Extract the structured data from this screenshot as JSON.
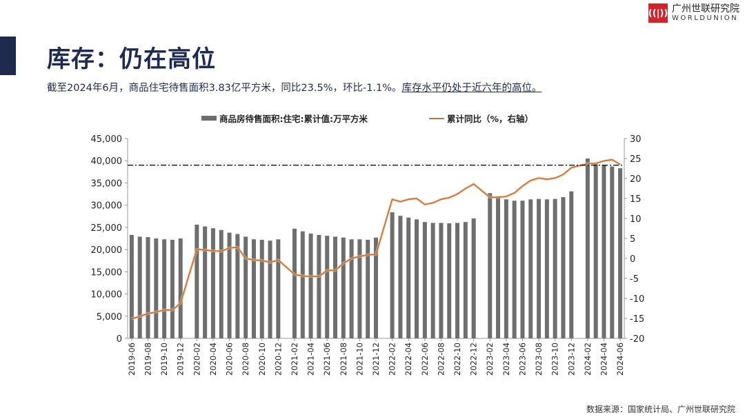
{
  "header": {
    "title": "库存：仍在高位",
    "subtitle_main": "截至2024年6月，商品住宅待售面积3.83亿平方米，同比23.5%，环比-1.1%。",
    "subtitle_highlight": "库存水平仍处于近六年的高位。"
  },
  "logo": {
    "mark": "((|))",
    "cn": "广州世联研究院",
    "en": "WORLDUNION"
  },
  "source": "数据来源：国家统计局、广州世联研究院",
  "colors": {
    "bar": "#6e6e6e",
    "line": "#c0733a",
    "accent": "#1f2a4f",
    "brand": "#d0252b"
  },
  "chart_data": {
    "type": "bar+line",
    "legend": [
      {
        "name": "商品房待售面积:住宅:累计值:万平方米",
        "type": "bar"
      },
      {
        "name": "累计同比（%，右轴）",
        "type": "line"
      }
    ],
    "legend_position": "top",
    "categories": [
      "2019-06",
      "2019-07",
      "2019-08",
      "2019-09",
      "2019-10",
      "2019-11",
      "2019-12",
      "2020-02",
      "2020-03",
      "2020-04",
      "2020-05",
      "2020-06",
      "2020-07",
      "2020-08",
      "2020-09",
      "2020-10",
      "2020-11",
      "2020-12",
      "2021-02",
      "2021-03",
      "2021-04",
      "2021-05",
      "2021-06",
      "2021-07",
      "2021-08",
      "2021-09",
      "2021-10",
      "2021-11",
      "2021-12",
      "2022-02",
      "2022-03",
      "2022-04",
      "2022-05",
      "2022-06",
      "2022-07",
      "2022-08",
      "2022-09",
      "2022-10",
      "2022-11",
      "2022-12",
      "2023-02",
      "2023-03",
      "2023-04",
      "2023-05",
      "2023-06",
      "2023-07",
      "2023-08",
      "2023-09",
      "2023-10",
      "2023-11",
      "2023-12",
      "2024-02",
      "2024-03",
      "2024-04",
      "2024-05",
      "2024-06"
    ],
    "series": [
      {
        "name": "商品房待售面积:住宅:累计值:万平方米",
        "axis": "left",
        "values": [
          23300,
          22900,
          22800,
          22500,
          22300,
          22200,
          22500,
          25600,
          25200,
          24800,
          24400,
          23800,
          23500,
          22900,
          22300,
          22200,
          22000,
          22300,
          24700,
          24100,
          23600,
          23300,
          23100,
          22900,
          22700,
          22300,
          22300,
          22200,
          22700,
          28400,
          27600,
          27200,
          26800,
          26200,
          26000,
          26000,
          25900,
          26000,
          26200,
          27000,
          32700,
          32000,
          31300,
          31000,
          31000,
          31300,
          31400,
          31300,
          31400,
          31800,
          33100,
          40500,
          39300,
          39100,
          38700,
          38300
        ]
      },
      {
        "name": "累计同比（%，右轴）",
        "axis": "right",
        "values": [
          -15.1,
          -14.5,
          -13.8,
          -13.4,
          -12.9,
          -12.9,
          -11.2,
          2.3,
          2.1,
          1.9,
          1.8,
          2.6,
          2.8,
          0,
          -0.4,
          -0.5,
          -1.0,
          -0.4,
          -4.0,
          -4.4,
          -4.5,
          -4.5,
          -3.0,
          -3.0,
          -1.2,
          0.0,
          0.5,
          0.9,
          1.0,
          14.8,
          14.2,
          14.8,
          15.0,
          13.5,
          13.9,
          14.8,
          15.2,
          16.1,
          17.5,
          18.6,
          15.3,
          15.3,
          15.5,
          16.4,
          18.1,
          19.5,
          20.1,
          19.8,
          20.1,
          21.0,
          22.7,
          23.7,
          23.8,
          24.4,
          24.7,
          23.5
        ]
      }
    ],
    "x_range": [
      "2019-06",
      "2024-06"
    ],
    "left_axis": {
      "min": 0,
      "max": 45000,
      "step": 5000,
      "ticks": [
        "0",
        "5,000",
        "10,000",
        "15,000",
        "20,000",
        "25,000",
        "30,000",
        "35,000",
        "40,000",
        "45,000"
      ]
    },
    "right_axis": {
      "min": -20,
      "max": 30,
      "step": 5,
      "ticks": [
        "-20",
        "-15",
        "-10",
        "-5",
        "0",
        "5",
        "10",
        "15",
        "20",
        "25",
        "30"
      ]
    },
    "reference_line": {
      "axis": "left",
      "value": 39000,
      "style": "dash-dot"
    },
    "grid": false
  }
}
